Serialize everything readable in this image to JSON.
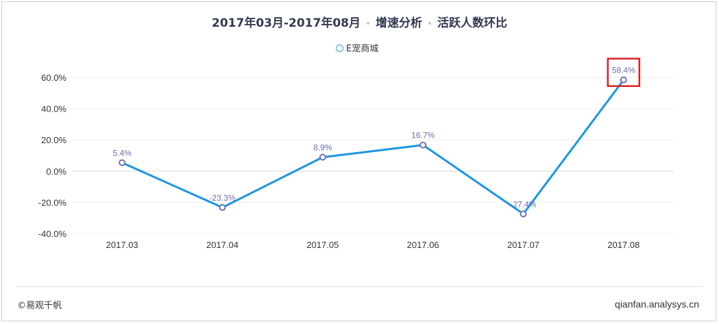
{
  "title": {
    "part1": "2017年03月-2017年08月",
    "part2": "增速分析",
    "part3": "活跃人数环比"
  },
  "legend": {
    "label": "E宠商城"
  },
  "footer": {
    "source": "©易观千帆",
    "site": "qianfan.analysys.cn"
  },
  "highlight": {
    "category": "2017.08",
    "color": "#e02020"
  },
  "colors": {
    "line": "#1a95e0",
    "marker_stroke": "#6e70b8",
    "label": "#6a6fb2",
    "grid": "#eeeeee",
    "zero_line": "#d9d9d9"
  },
  "chart_data": {
    "type": "line",
    "categories": [
      "2017.03",
      "2017.04",
      "2017.05",
      "2017.06",
      "2017.07",
      "2017.08"
    ],
    "series": [
      {
        "name": "E宠商城",
        "values": [
          5.4,
          -23.3,
          8.9,
          16.7,
          -27.4,
          58.4
        ],
        "labels": [
          "5.4%",
          "-23.3%",
          "8.9%",
          "16.7%",
          "-27.4%",
          "58.4%"
        ]
      }
    ],
    "ylim": [
      -40,
      60
    ],
    "yticks": [
      60,
      40,
      20,
      0,
      -20,
      -40
    ],
    "ytick_labels": [
      "60.0%",
      "40.0%",
      "20.0%",
      "0.0%",
      "-20.0%",
      "-40.0%"
    ],
    "grid": true,
    "legend_position": "top-center",
    "xlabel": "",
    "ylabel": ""
  }
}
